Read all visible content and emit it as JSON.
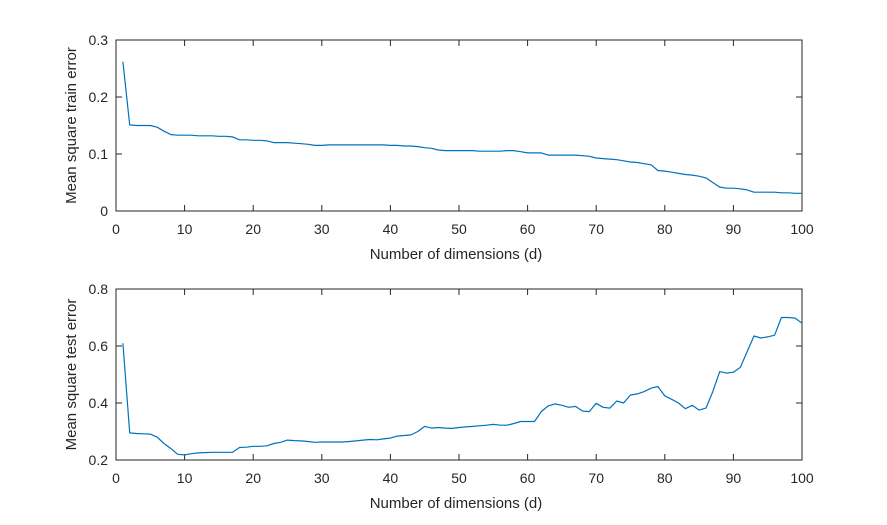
{
  "chart_data": [
    {
      "type": "line",
      "xlabel": "Number of dimensions (d)",
      "ylabel": "Mean square train error",
      "xlim": [
        0,
        100
      ],
      "ylim": [
        0,
        0.3
      ],
      "xticks": [
        "0",
        "10",
        "20",
        "30",
        "40",
        "50",
        "60",
        "70",
        "80",
        "90",
        "100"
      ],
      "yticks": [
        "0",
        "0.1",
        "0.2",
        "0.3"
      ],
      "grid": false,
      "line_color": "#0072BD",
      "x": [
        1,
        2,
        3,
        4,
        5,
        6,
        7,
        8,
        9,
        10,
        11,
        12,
        13,
        14,
        15,
        16,
        17,
        18,
        19,
        20,
        21,
        22,
        23,
        24,
        25,
        26,
        27,
        28,
        29,
        30,
        31,
        32,
        33,
        34,
        35,
        36,
        37,
        38,
        39,
        40,
        41,
        42,
        43,
        44,
        45,
        46,
        47,
        48,
        49,
        50,
        51,
        52,
        53,
        54,
        55,
        56,
        57,
        58,
        59,
        60,
        61,
        62,
        63,
        64,
        65,
        66,
        67,
        68,
        69,
        70,
        71,
        72,
        73,
        74,
        75,
        76,
        77,
        78,
        79,
        80,
        81,
        82,
        83,
        84,
        85,
        86,
        87,
        88,
        89,
        90,
        91,
        92,
        93,
        94,
        95,
        96,
        97,
        98,
        99,
        100
      ],
      "values": [
        0.262,
        0.151,
        0.15,
        0.15,
        0.15,
        0.147,
        0.14,
        0.134,
        0.133,
        0.133,
        0.133,
        0.132,
        0.132,
        0.132,
        0.131,
        0.131,
        0.13,
        0.125,
        0.125,
        0.124,
        0.124,
        0.123,
        0.12,
        0.12,
        0.12,
        0.119,
        0.118,
        0.117,
        0.115,
        0.115,
        0.116,
        0.116,
        0.116,
        0.116,
        0.116,
        0.116,
        0.116,
        0.116,
        0.116,
        0.115,
        0.115,
        0.114,
        0.114,
        0.113,
        0.111,
        0.11,
        0.107,
        0.106,
        0.106,
        0.106,
        0.106,
        0.106,
        0.105,
        0.105,
        0.105,
        0.105,
        0.106,
        0.106,
        0.104,
        0.102,
        0.102,
        0.102,
        0.098,
        0.098,
        0.098,
        0.098,
        0.098,
        0.097,
        0.096,
        0.093,
        0.092,
        0.091,
        0.09,
        0.088,
        0.086,
        0.085,
        0.083,
        0.081,
        0.071,
        0.07,
        0.068,
        0.066,
        0.064,
        0.063,
        0.061,
        0.058,
        0.05,
        0.042,
        0.04,
        0.04,
        0.039,
        0.037,
        0.033,
        0.033,
        0.033,
        0.033,
        0.032,
        0.032,
        0.031,
        0.031
      ]
    },
    {
      "type": "line",
      "xlabel": "Number of dimensions (d)",
      "ylabel": "Mean square test error",
      "xlim": [
        0,
        100
      ],
      "ylim": [
        0.2,
        0.8
      ],
      "xticks": [
        "0",
        "10",
        "20",
        "30",
        "40",
        "50",
        "60",
        "70",
        "80",
        "90",
        "100"
      ],
      "yticks": [
        "0.2",
        "0.4",
        "0.6",
        "0.8"
      ],
      "grid": false,
      "line_color": "#0072BD",
      "x": [
        1,
        2,
        3,
        4,
        5,
        6,
        7,
        8,
        9,
        10,
        11,
        12,
        13,
        14,
        15,
        16,
        17,
        18,
        19,
        20,
        21,
        22,
        23,
        24,
        25,
        26,
        27,
        28,
        29,
        30,
        31,
        32,
        33,
        34,
        35,
        36,
        37,
        38,
        39,
        40,
        41,
        42,
        43,
        44,
        45,
        46,
        47,
        48,
        49,
        50,
        51,
        52,
        53,
        54,
        55,
        56,
        57,
        58,
        59,
        60,
        61,
        62,
        63,
        64,
        65,
        66,
        67,
        68,
        69,
        70,
        71,
        72,
        73,
        74,
        75,
        76,
        77,
        78,
        79,
        80,
        81,
        82,
        83,
        84,
        85,
        86,
        87,
        88,
        89,
        90,
        91,
        92,
        93,
        94,
        95,
        96,
        97,
        98,
        99,
        100
      ],
      "values": [
        0.61,
        0.295,
        0.293,
        0.292,
        0.291,
        0.28,
        0.258,
        0.24,
        0.22,
        0.218,
        0.222,
        0.225,
        0.226,
        0.227,
        0.227,
        0.227,
        0.227,
        0.244,
        0.245,
        0.248,
        0.248,
        0.25,
        0.258,
        0.262,
        0.27,
        0.268,
        0.267,
        0.265,
        0.262,
        0.263,
        0.263,
        0.263,
        0.263,
        0.265,
        0.267,
        0.27,
        0.272,
        0.271,
        0.274,
        0.277,
        0.284,
        0.286,
        0.288,
        0.3,
        0.318,
        0.312,
        0.314,
        0.312,
        0.311,
        0.314,
        0.316,
        0.318,
        0.32,
        0.322,
        0.325,
        0.322,
        0.322,
        0.328,
        0.335,
        0.335,
        0.335,
        0.37,
        0.39,
        0.397,
        0.392,
        0.385,
        0.388,
        0.372,
        0.37,
        0.399,
        0.385,
        0.382,
        0.407,
        0.4,
        0.428,
        0.432,
        0.44,
        0.452,
        0.458,
        0.425,
        0.413,
        0.4,
        0.38,
        0.392,
        0.375,
        0.382,
        0.44,
        0.51,
        0.505,
        0.508,
        0.525,
        0.58,
        0.635,
        0.628,
        0.632,
        0.638,
        0.7,
        0.7,
        0.698,
        0.68
      ]
    }
  ]
}
